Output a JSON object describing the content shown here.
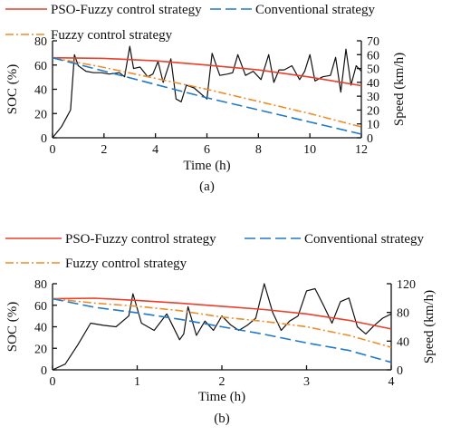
{
  "chart_data": [
    {
      "type": "line",
      "caption": "(a)",
      "xlabel": "Time (h)",
      "ylabel": "SOC (%)",
      "y2label": "Speed (km/h)",
      "xlim": [
        0,
        12
      ],
      "ylim": [
        0,
        80
      ],
      "y2lim": [
        0,
        70
      ],
      "xticks": [
        "0",
        "2",
        "4",
        "6",
        "8",
        "10",
        "12"
      ],
      "yticks": [
        "0",
        "20",
        "40",
        "60",
        "80"
      ],
      "y2ticks": [
        "0",
        "10",
        "20",
        "30",
        "40",
        "50",
        "60",
        "70"
      ],
      "legend_placement": "top",
      "colors": {
        "pso": "#e8402a",
        "conv": "#1f78c8",
        "fuzzy": "#f08c2a",
        "speed": "#111111"
      },
      "series": [
        {
          "name": "PSO-Fuzzy control strategy",
          "axis": "left",
          "style": "solid",
          "color": "#e8402a",
          "x": [
            0,
            2,
            4,
            6,
            8,
            10,
            12
          ],
          "values": [
            66,
            65.5,
            63.5,
            60,
            56,
            50,
            43
          ]
        },
        {
          "name": "Conventional strategy",
          "axis": "left",
          "style": "dash",
          "color": "#1f78c8",
          "x": [
            0,
            2,
            4,
            6,
            8,
            10,
            12
          ],
          "values": [
            66,
            55,
            44,
            33,
            23,
            13,
            3
          ]
        },
        {
          "name": "Fuzzy control strategy",
          "axis": "left",
          "style": "dashdot",
          "color": "#f08c2a",
          "x": [
            0,
            2,
            4,
            6,
            8,
            10,
            12
          ],
          "values": [
            66,
            58,
            49,
            40,
            30,
            20,
            9
          ]
        },
        {
          "name": "Speed",
          "axis": "right",
          "style": "solid",
          "color": "#111111",
          "x": [
            0,
            0.35,
            0.7,
            0.85,
            1.0,
            1.3,
            1.6,
            1.9,
            2.2,
            2.6,
            2.8,
            3.0,
            3.15,
            3.4,
            3.7,
            3.9,
            4.1,
            4.3,
            4.6,
            4.8,
            5.0,
            5.2,
            5.5,
            6.0,
            6.2,
            6.5,
            6.8,
            7.0,
            7.2,
            7.5,
            7.8,
            8.1,
            8.4,
            8.6,
            8.8,
            9.0,
            9.3,
            9.6,
            9.8,
            10.0,
            10.2,
            10.5,
            10.8,
            11.0,
            11.2,
            11.4,
            11.6,
            11.8,
            12.0
          ],
          "values": [
            0,
            8,
            20,
            60,
            52,
            48,
            47,
            47,
            46,
            47,
            44,
            66,
            50,
            51,
            44,
            46,
            55,
            40,
            57,
            28,
            26,
            38,
            36,
            28,
            61,
            45,
            46,
            47,
            60,
            45,
            48,
            42,
            60,
            40,
            49,
            49,
            52,
            42,
            48,
            60,
            41,
            44,
            45,
            58,
            33,
            64,
            38,
            52,
            48
          ]
        }
      ]
    },
    {
      "type": "line",
      "caption": "(b)",
      "xlabel": "Time (h)",
      "ylabel": "SOC (%)",
      "y2label": "Speed (km/h)",
      "xlim": [
        0,
        4
      ],
      "ylim": [
        0,
        80
      ],
      "y2lim": [
        0,
        120
      ],
      "xticks": [
        "0",
        "1",
        "2",
        "3",
        "4"
      ],
      "yticks": [
        "0",
        "20",
        "40",
        "60",
        "80"
      ],
      "y2ticks": [
        "0",
        "40",
        "80",
        "120"
      ],
      "legend_placement": "top",
      "colors": {
        "pso": "#e8402a",
        "conv": "#1f78c8",
        "fuzzy": "#f08c2a",
        "speed": "#111111"
      },
      "series": [
        {
          "name": "PSO-Fuzzy control strategy",
          "axis": "left",
          "style": "solid",
          "color": "#e8402a",
          "x": [
            0,
            0.5,
            1,
            1.5,
            2,
            2.5,
            3,
            3.5,
            4
          ],
          "values": [
            66,
            66.5,
            64.5,
            62,
            59,
            56,
            52,
            46,
            38
          ]
        },
        {
          "name": "Conventional strategy",
          "axis": "left",
          "style": "dash",
          "color": "#1f78c8",
          "x": [
            0,
            0.5,
            1,
            1.5,
            2,
            2.5,
            3,
            3.5,
            4
          ],
          "values": [
            66,
            58,
            53,
            47,
            40,
            33,
            25,
            18,
            7
          ]
        },
        {
          "name": "Fuzzy control strategy",
          "axis": "left",
          "style": "dashdot",
          "color": "#f08c2a",
          "x": [
            0,
            0.5,
            1,
            1.5,
            2,
            2.5,
            3,
            3.5,
            4
          ],
          "values": [
            66,
            62,
            59,
            55,
            49,
            45,
            40,
            32,
            21
          ]
        },
        {
          "name": "Speed",
          "axis": "right",
          "style": "solid",
          "color": "#111111",
          "x": [
            0,
            0.15,
            0.3,
            0.45,
            0.6,
            0.75,
            0.9,
            0.95,
            1.05,
            1.2,
            1.35,
            1.5,
            1.55,
            1.6,
            1.7,
            1.8,
            1.9,
            2.0,
            2.1,
            2.2,
            2.3,
            2.4,
            2.5,
            2.6,
            2.7,
            2.8,
            2.9,
            3.0,
            3.1,
            3.2,
            3.3,
            3.4,
            3.5,
            3.6,
            3.7,
            3.8,
            3.9,
            4.0
          ],
          "values": [
            0,
            8,
            35,
            65,
            62,
            60,
            75,
            106,
            65,
            55,
            78,
            42,
            50,
            88,
            48,
            68,
            55,
            75,
            63,
            55,
            62,
            72,
            120,
            80,
            55,
            68,
            75,
            110,
            113,
            90,
            65,
            95,
            100,
            60,
            50,
            62,
            72,
            78
          ]
        }
      ]
    }
  ]
}
